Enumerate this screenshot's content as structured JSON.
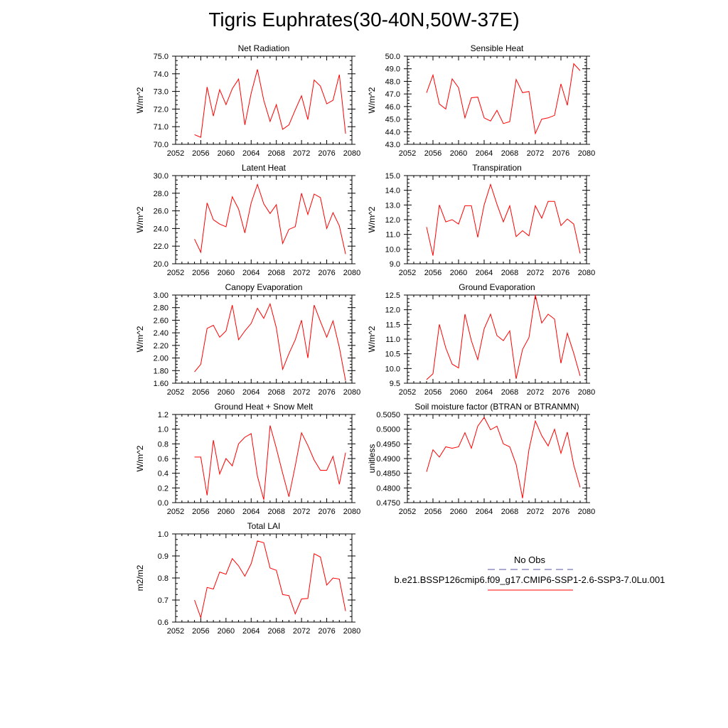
{
  "title": "Tigris Euphrates(30-40N,50W-37E)",
  "legend": {
    "obs_label": "No Obs",
    "case_label": "b.e21.BSSP126cmip6.f09_g17.CMIP6-SSP1-2.6-SSP3-7.0Lu.001",
    "obs_color": "#5555aa",
    "case_color": "#ff0000"
  },
  "chart_data": [
    {
      "type": "line",
      "title": "Net Radiation",
      "ylabel": "W/m^2",
      "xlim": [
        2052,
        2080
      ],
      "ylim": [
        70,
        75
      ],
      "xticks": [
        "2052",
        "2056",
        "2060",
        "2064",
        "2068",
        "2072",
        "2076",
        "2080"
      ],
      "yticks": [
        "70.0",
        "71.0",
        "72.0",
        "73.0",
        "74.0",
        "75.0"
      ],
      "x": [
        2055,
        2056,
        2057,
        2058,
        2059,
        2060,
        2061,
        2062,
        2063,
        2064,
        2065,
        2066,
        2067,
        2068,
        2069,
        2070,
        2071,
        2072,
        2073,
        2074,
        2075,
        2076,
        2077,
        2078,
        2079
      ],
      "series": [
        {
          "color": "#ff0000",
          "values": [
            70.55,
            70.4,
            73.25,
            71.6,
            73.1,
            72.25,
            73.15,
            73.7,
            71.1,
            72.9,
            74.25,
            72.5,
            71.3,
            72.25,
            70.85,
            71.1,
            71.95,
            72.75,
            71.4,
            73.65,
            73.3,
            72.3,
            72.5,
            73.95,
            70.6
          ]
        }
      ]
    },
    {
      "type": "line",
      "title": "Sensible Heat",
      "ylabel": "W/m^2",
      "xlim": [
        2052,
        2080
      ],
      "ylim": [
        43,
        50
      ],
      "xticks": [
        "2052",
        "2056",
        "2060",
        "2064",
        "2068",
        "2072",
        "2076",
        "2080"
      ],
      "yticks": [
        "43.0",
        "44.0",
        "45.0",
        "46.0",
        "47.0",
        "48.0",
        "49.0",
        "50.0"
      ],
      "x": [
        2055,
        2056,
        2057,
        2058,
        2059,
        2060,
        2061,
        2062,
        2063,
        2064,
        2065,
        2066,
        2067,
        2068,
        2069,
        2070,
        2071,
        2072,
        2073,
        2074,
        2075,
        2076,
        2077,
        2078,
        2079
      ],
      "series": [
        {
          "color": "#ff0000",
          "values": [
            47.1,
            48.5,
            46.2,
            45.8,
            48.2,
            47.5,
            45.1,
            46.7,
            46.75,
            45.1,
            44.85,
            45.7,
            44.65,
            44.8,
            48.15,
            47.1,
            47.2,
            43.85,
            45.0,
            45.1,
            45.3,
            47.8,
            46.1,
            49.4,
            48.85
          ]
        }
      ]
    },
    {
      "type": "line",
      "title": "Latent Heat",
      "ylabel": "W/m^2",
      "xlim": [
        2052,
        2080
      ],
      "ylim": [
        20,
        30
      ],
      "xticks": [
        "2052",
        "2056",
        "2060",
        "2064",
        "2068",
        "2072",
        "2076",
        "2080"
      ],
      "yticks": [
        "20.0",
        "22.0",
        "24.0",
        "26.0",
        "28.0",
        "30.0"
      ],
      "x": [
        2055,
        2056,
        2057,
        2058,
        2059,
        2060,
        2061,
        2062,
        2063,
        2064,
        2065,
        2066,
        2067,
        2068,
        2069,
        2070,
        2071,
        2072,
        2073,
        2074,
        2075,
        2076,
        2077,
        2078,
        2079
      ],
      "series": [
        {
          "color": "#ff0000",
          "values": [
            22.8,
            21.3,
            26.9,
            25.0,
            24.5,
            24.2,
            27.6,
            26.2,
            23.5,
            26.9,
            29.0,
            26.8,
            25.7,
            26.7,
            22.3,
            23.9,
            24.2,
            28.0,
            25.6,
            27.9,
            27.5,
            24.0,
            25.8,
            24.3,
            21.1
          ]
        }
      ]
    },
    {
      "type": "line",
      "title": "Transpiration",
      "ylabel": "W/m^2",
      "xlim": [
        2052,
        2080
      ],
      "ylim": [
        9,
        15
      ],
      "xticks": [
        "2052",
        "2056",
        "2060",
        "2064",
        "2068",
        "2072",
        "2076",
        "2080"
      ],
      "yticks": [
        "9.0",
        "10.0",
        "11.0",
        "12.0",
        "13.0",
        "14.0",
        "15.0"
      ],
      "x": [
        2055,
        2056,
        2057,
        2058,
        2059,
        2060,
        2061,
        2062,
        2063,
        2064,
        2065,
        2066,
        2067,
        2068,
        2069,
        2070,
        2071,
        2072,
        2073,
        2074,
        2075,
        2076,
        2077,
        2078,
        2079
      ],
      "series": [
        {
          "color": "#ff0000",
          "values": [
            11.5,
            9.55,
            13.0,
            11.85,
            12.0,
            11.7,
            12.95,
            12.95,
            10.8,
            13.0,
            14.4,
            13.05,
            11.85,
            12.95,
            10.85,
            11.25,
            10.9,
            12.95,
            12.1,
            13.25,
            13.25,
            11.6,
            12.05,
            11.7,
            9.7
          ]
        }
      ]
    },
    {
      "type": "line",
      "title": "Canopy Evaporation",
      "ylabel": "W/m^2",
      "xlim": [
        2052,
        2080
      ],
      "ylim": [
        1.6,
        3.0
      ],
      "xticks": [
        "2052",
        "2056",
        "2060",
        "2064",
        "2068",
        "2072",
        "2076",
        "2080"
      ],
      "yticks": [
        "1.60",
        "1.80",
        "2.00",
        "2.20",
        "2.40",
        "2.60",
        "2.80",
        "3.00"
      ],
      "x": [
        2055,
        2056,
        2057,
        2058,
        2059,
        2060,
        2061,
        2062,
        2063,
        2064,
        2065,
        2066,
        2067,
        2068,
        2069,
        2070,
        2071,
        2072,
        2073,
        2074,
        2075,
        2076,
        2077,
        2078,
        2079
      ],
      "series": [
        {
          "color": "#ff0000",
          "values": [
            1.78,
            1.9,
            2.47,
            2.52,
            2.33,
            2.43,
            2.84,
            2.29,
            2.43,
            2.55,
            2.79,
            2.63,
            2.86,
            2.48,
            1.82,
            2.07,
            2.29,
            2.6,
            2.0,
            2.84,
            2.58,
            2.33,
            2.59,
            2.17,
            1.64
          ]
        }
      ]
    },
    {
      "type": "line",
      "title": "Ground Evaporation",
      "ylabel": "W/m^2",
      "xlim": [
        2052,
        2080
      ],
      "ylim": [
        9.5,
        12.5
      ],
      "xticks": [
        "2052",
        "2056",
        "2060",
        "2064",
        "2068",
        "2072",
        "2076",
        "2080"
      ],
      "yticks": [
        "9.5",
        "10.0",
        "10.5",
        "11.0",
        "11.5",
        "12.0",
        "12.5"
      ],
      "x": [
        2055,
        2056,
        2057,
        2058,
        2059,
        2060,
        2061,
        2062,
        2063,
        2064,
        2065,
        2066,
        2067,
        2068,
        2069,
        2070,
        2071,
        2072,
        2073,
        2074,
        2075,
        2076,
        2077,
        2078,
        2079
      ],
      "series": [
        {
          "color": "#ff0000",
          "values": [
            9.62,
            9.82,
            11.5,
            10.7,
            10.15,
            10.02,
            11.85,
            10.95,
            10.3,
            11.35,
            11.85,
            11.12,
            10.95,
            11.28,
            9.65,
            10.65,
            11.05,
            12.5,
            11.55,
            11.85,
            11.68,
            10.18,
            11.2,
            10.52,
            9.75
          ]
        }
      ]
    },
    {
      "type": "line",
      "title": "Ground Heat + Snow Melt",
      "ylabel": "W/m^2",
      "xlim": [
        2052,
        2080
      ],
      "ylim": [
        0,
        1.2
      ],
      "xticks": [
        "2052",
        "2056",
        "2060",
        "2064",
        "2068",
        "2072",
        "2076",
        "2080"
      ],
      "yticks": [
        "0.0",
        "0.2",
        "0.4",
        "0.6",
        "0.8",
        "1.0",
        "1.2"
      ],
      "x": [
        2055,
        2056,
        2057,
        2058,
        2059,
        2060,
        2061,
        2062,
        2063,
        2064,
        2065,
        2066,
        2067,
        2068,
        2069,
        2070,
        2071,
        2072,
        2073,
        2074,
        2075,
        2076,
        2077,
        2078,
        2079
      ],
      "series": [
        {
          "color": "#ff0000",
          "values": [
            0.62,
            0.62,
            0.1,
            0.85,
            0.39,
            0.6,
            0.5,
            0.8,
            0.89,
            0.94,
            0.36,
            0.04,
            1.05,
            0.74,
            0.4,
            0.08,
            0.5,
            0.95,
            0.78,
            0.58,
            0.44,
            0.44,
            0.63,
            0.25,
            0.68
          ]
        }
      ]
    },
    {
      "type": "line",
      "title": "Soil moisture factor (BTRAN or BTRANMN)",
      "ylabel": "unitless",
      "xlim": [
        2052,
        2080
      ],
      "ylim": [
        0.475,
        0.505
      ],
      "xticks": [
        "2052",
        "2056",
        "2060",
        "2064",
        "2068",
        "2072",
        "2076",
        "2080"
      ],
      "yticks": [
        "0.4750",
        "0.4800",
        "0.4850",
        "0.4900",
        "0.4950",
        "0.5000",
        "0.5050"
      ],
      "x": [
        2055,
        2056,
        2057,
        2058,
        2059,
        2060,
        2061,
        2062,
        2063,
        2064,
        2065,
        2066,
        2067,
        2068,
        2069,
        2070,
        2071,
        2072,
        2073,
        2074,
        2075,
        2076,
        2077,
        2078,
        2079
      ],
      "series": [
        {
          "color": "#ff0000",
          "values": [
            0.4855,
            0.493,
            0.4905,
            0.494,
            0.4935,
            0.494,
            0.4988,
            0.4935,
            0.501,
            0.504,
            0.4998,
            0.501,
            0.495,
            0.494,
            0.488,
            0.4765,
            0.493,
            0.5028,
            0.4978,
            0.4943,
            0.5,
            0.4918,
            0.499,
            0.4878,
            0.4802
          ]
        }
      ]
    },
    {
      "type": "line",
      "title": "Total LAI",
      "ylabel": "m2/m2",
      "xlim": [
        2052,
        2080
      ],
      "ylim": [
        0.6,
        1.0
      ],
      "xticks": [
        "2052",
        "2056",
        "2060",
        "2064",
        "2068",
        "2072",
        "2076",
        "2080"
      ],
      "yticks": [
        "0.6",
        "0.7",
        "0.8",
        "0.9",
        "1.0"
      ],
      "x": [
        2055,
        2056,
        2057,
        2058,
        2059,
        2060,
        2061,
        2062,
        2063,
        2064,
        2065,
        2066,
        2067,
        2068,
        2069,
        2070,
        2071,
        2072,
        2073,
        2074,
        2075,
        2076,
        2077,
        2078,
        2079
      ],
      "series": [
        {
          "color": "#ff0000",
          "values": [
            0.7,
            0.62,
            0.757,
            0.75,
            0.827,
            0.817,
            0.888,
            0.855,
            0.808,
            0.865,
            0.968,
            0.96,
            0.845,
            0.835,
            0.725,
            0.72,
            0.637,
            0.705,
            0.707,
            0.91,
            0.895,
            0.768,
            0.8,
            0.795,
            0.65
          ]
        }
      ]
    }
  ]
}
